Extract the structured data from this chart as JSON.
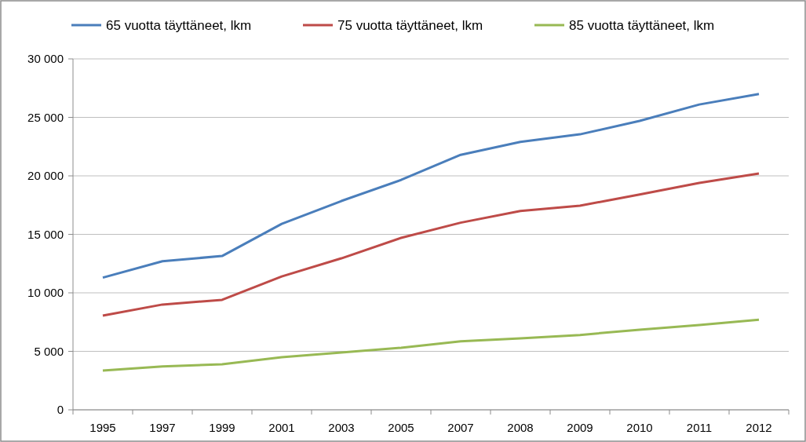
{
  "chart_data": {
    "type": "line",
    "categories": [
      "1995",
      "1997",
      "1999",
      "2001",
      "2003",
      "2005",
      "2007",
      "2008",
      "2009",
      "2010",
      "2011",
      "2012"
    ],
    "series": [
      {
        "name": "65 vuotta täyttäneet, lkm",
        "color": "#4a7ebb",
        "values": [
          11300,
          12700,
          13150,
          15900,
          17850,
          19650,
          21800,
          22900,
          23550,
          24700,
          26100,
          27000
        ]
      },
      {
        "name": "75 vuotta täyttäneet, lkm",
        "color": "#be4b48",
        "values": [
          8050,
          9000,
          9400,
          11400,
          12950,
          14700,
          16000,
          17000,
          17450,
          18400,
          19400,
          20200
        ]
      },
      {
        "name": "85 vuotta täyttäneet, lkm",
        "color": "#98b954",
        "values": [
          3350,
          3700,
          3900,
          4500,
          4900,
          5300,
          5850,
          6100,
          6400,
          6850,
          7250,
          7700
        ]
      }
    ],
    "ylim": [
      0,
      30000
    ],
    "yticks": [
      {
        "value": 0,
        "label": "0"
      },
      {
        "value": 5000,
        "label": "5 000"
      },
      {
        "value": 10000,
        "label": "10 000"
      },
      {
        "value": 15000,
        "label": "15 000"
      },
      {
        "value": 20000,
        "label": "20 000"
      },
      {
        "value": 25000,
        "label": "25 000"
      },
      {
        "value": 30000,
        "label": "30 000"
      }
    ],
    "grid": "y",
    "legend": "top",
    "marker": "none",
    "line_style": "solid"
  }
}
